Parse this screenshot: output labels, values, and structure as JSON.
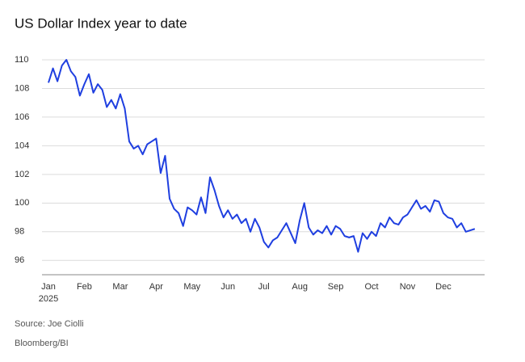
{
  "chart_data": {
    "type": "line",
    "title": "US Dollar Index year to date",
    "categories": [
      "Jan",
      null,
      null,
      null,
      null,
      null,
      null,
      null,
      "Feb",
      null,
      null,
      null,
      null,
      null,
      null,
      null,
      "Mar",
      null,
      null,
      null,
      null,
      null,
      null,
      null,
      "Apr",
      null,
      null,
      null,
      null,
      null,
      null,
      null,
      "May",
      null,
      null,
      null,
      null,
      null,
      null,
      null,
      "Jun",
      null,
      null,
      null,
      null,
      null,
      null,
      null,
      "Jul",
      null,
      null,
      null,
      null,
      null,
      null,
      null,
      "Aug",
      null,
      null,
      null,
      null,
      null,
      null,
      null,
      "Sep",
      null,
      null,
      null,
      null,
      null,
      null,
      null,
      "Oct",
      null,
      null,
      null,
      null,
      null,
      null,
      null,
      "Nov",
      null,
      null,
      null,
      null,
      null,
      null,
      null,
      "Dec",
      null,
      null,
      null,
      null,
      null,
      null,
      null
    ],
    "x_sublabel": "2025",
    "values": [
      108.4,
      109.4,
      108.5,
      109.6,
      110.0,
      109.2,
      108.8,
      107.5,
      108.3,
      109.0,
      107.7,
      108.3,
      107.9,
      106.7,
      107.2,
      106.6,
      107.6,
      106.6,
      104.3,
      103.8,
      104.0,
      103.4,
      104.1,
      104.3,
      104.5,
      102.1,
      103.3,
      100.3,
      99.6,
      99.3,
      98.4,
      99.7,
      99.5,
      99.2,
      100.4,
      99.3,
      101.8,
      100.9,
      99.8,
      99.0,
      99.5,
      98.9,
      99.2,
      98.6,
      98.9,
      98.0,
      98.9,
      98.3,
      97.3,
      96.9,
      97.4,
      97.6,
      98.1,
      98.6,
      97.9,
      97.2,
      98.8,
      100.0,
      98.3,
      97.8,
      98.1,
      97.9,
      98.4,
      97.8,
      98.4,
      98.2,
      97.7,
      97.6,
      97.7,
      96.6,
      97.9,
      97.5,
      98.0,
      97.7,
      98.6,
      98.3,
      99.0,
      98.6,
      98.5,
      99.0,
      99.2,
      99.7,
      100.2,
      99.6,
      99.8,
      99.4,
      100.2,
      100.1,
      99.3,
      99.0,
      98.9,
      98.3,
      98.6,
      98.0,
      98.1,
      98.2
    ],
    "color": "#1f3fe0",
    "ylim": [
      95,
      110
    ],
    "yticks": [
      96,
      98,
      100,
      102,
      104,
      106,
      108,
      110
    ],
    "grid": true,
    "source": "Source: Joe Ciolli",
    "credit": "Bloomberg/BI"
  }
}
